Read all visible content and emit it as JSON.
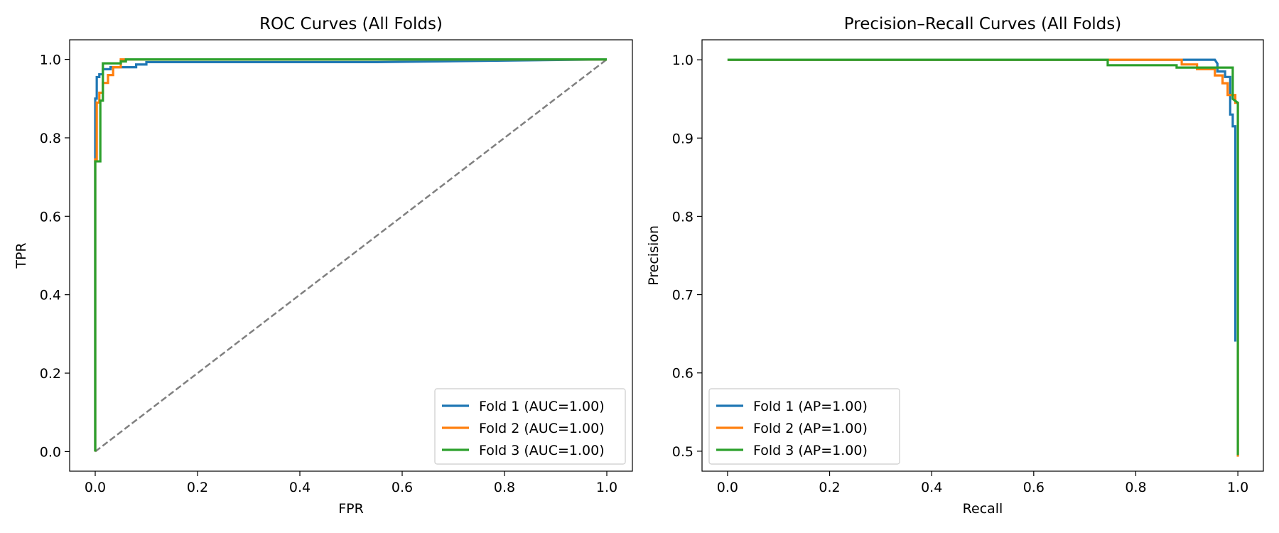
{
  "chart_data": [
    {
      "type": "line",
      "title": "ROC Curves (All Folds)",
      "xlabel": "FPR",
      "ylabel": "TPR",
      "xlim": [
        -0.05,
        1.05
      ],
      "ylim": [
        -0.05,
        1.05
      ],
      "x_ticks": [
        "0.0",
        "0.2",
        "0.4",
        "0.6",
        "0.8",
        "1.0"
      ],
      "y_ticks": [
        "0.0",
        "0.2",
        "0.4",
        "0.6",
        "0.8",
        "1.0"
      ],
      "grid": false,
      "legend_position": "lower right",
      "reference_line": {
        "x": [
          0,
          1
        ],
        "y": [
          0,
          1
        ],
        "color": "#808080",
        "style": "dashed"
      },
      "series": [
        {
          "name": "Fold 1 (AUC=1.00)",
          "color": "#1f77b4",
          "x": [
            0,
            0,
            0.003,
            0.003,
            0.008,
            0.008,
            0.015,
            0.015,
            0.03,
            0.03,
            0.08,
            0.08,
            0.1,
            0.1,
            0.55,
            1.0
          ],
          "y": [
            0,
            0.9,
            0.9,
            0.955,
            0.955,
            0.962,
            0.962,
            0.975,
            0.975,
            0.98,
            0.98,
            0.987,
            0.987,
            0.993,
            0.993,
            1.0
          ]
        },
        {
          "name": "Fold 2 (AUC=1.00)",
          "color": "#ff7f0e",
          "x": [
            0,
            0,
            0.003,
            0.003,
            0.008,
            0.008,
            0.015,
            0.015,
            0.025,
            0.025,
            0.035,
            0.035,
            0.05,
            0.05,
            1.0
          ],
          "y": [
            0,
            0.745,
            0.745,
            0.89,
            0.89,
            0.915,
            0.915,
            0.94,
            0.94,
            0.96,
            0.96,
            0.98,
            0.98,
            1.0,
            1.0
          ]
        },
        {
          "name": "Fold 3 (AUC=1.00)",
          "color": "#2ca02c",
          "x": [
            0,
            0,
            0.01,
            0.01,
            0.015,
            0.015,
            0.04,
            0.04,
            0.05,
            0.05,
            0.06,
            0.06,
            1.0
          ],
          "y": [
            0,
            0.74,
            0.74,
            0.895,
            0.895,
            0.99,
            0.99,
            0.99,
            0.99,
            0.995,
            0.995,
            1.0,
            1.0
          ]
        }
      ]
    },
    {
      "type": "line",
      "title": "Precision–Recall Curves (All Folds)",
      "xlabel": "Recall",
      "ylabel": "Precision",
      "xlim": [
        -0.05,
        1.05
      ],
      "ylim": [
        0.4745,
        1.0255
      ],
      "x_ticks": [
        "0.0",
        "0.2",
        "0.4",
        "0.6",
        "0.8",
        "1.0"
      ],
      "y_ticks": [
        "0.5",
        "0.6",
        "0.7",
        "0.8",
        "0.9",
        "1.0"
      ],
      "grid": false,
      "legend_position": "lower left",
      "series": [
        {
          "name": "Fold 1 (AP=1.00)",
          "color": "#1f77b4",
          "x": [
            0,
            0.955,
            0.96,
            0.96,
            0.975,
            0.975,
            0.985,
            0.985,
            0.99,
            0.99,
            0.995,
            0.995
          ],
          "y": [
            1.0,
            1.0,
            0.995,
            0.985,
            0.985,
            0.978,
            0.978,
            0.93,
            0.93,
            0.915,
            0.915,
            0.64
          ]
        },
        {
          "name": "Fold 2 (AP=1.00)",
          "color": "#ff7f0e",
          "x": [
            0,
            0.89,
            0.89,
            0.92,
            0.92,
            0.955,
            0.955,
            0.97,
            0.97,
            0.98,
            0.98,
            0.995,
            0.995,
            1.0,
            1.0
          ],
          "y": [
            1.0,
            1.0,
            0.994,
            0.994,
            0.988,
            0.988,
            0.98,
            0.98,
            0.97,
            0.97,
            0.955,
            0.955,
            0.945,
            0.945,
            0.493
          ]
        },
        {
          "name": "Fold 3 (AP=1.00)",
          "color": "#2ca02c",
          "x": [
            0,
            0.745,
            0.745,
            0.88,
            0.88,
            0.95,
            0.95,
            0.99,
            0.99,
            1.0,
            1.0
          ],
          "y": [
            1.0,
            1.0,
            0.993,
            0.993,
            0.99,
            0.99,
            0.99,
            0.99,
            0.95,
            0.945,
            0.495
          ]
        }
      ]
    }
  ]
}
